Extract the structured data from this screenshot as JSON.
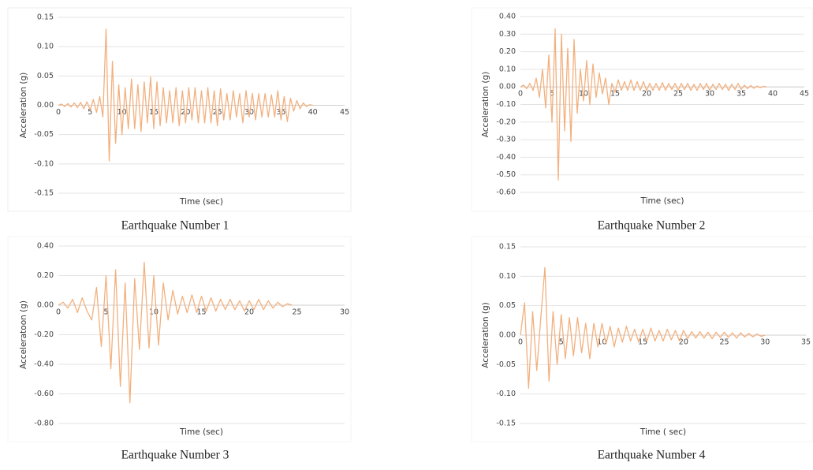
{
  "chart_data": [
    {
      "type": "line",
      "caption": "Earthquake Number 1",
      "xlabel": "Time (sec)",
      "ylabel": "Acceleration (g)",
      "color": "#f2b07e",
      "grid": true,
      "xlim": [
        0,
        45
      ],
      "ylim": [
        -0.15,
        0.15
      ],
      "xticks": [
        0,
        5,
        10,
        15,
        20,
        25,
        30,
        35,
        40,
        45
      ],
      "yticks": [
        -0.15,
        {
          "value": -0.1,
          "label": "-0.10"
        },
        -0.05,
        {
          "value": 0,
          "label": "0.00"
        },
        0.05,
        {
          "value": 0.1,
          "label": "0.10"
        },
        0.15
      ],
      "x": [
        0,
        0.5,
        1,
        1.5,
        2,
        2.5,
        3,
        3.5,
        4,
        4.5,
        5,
        5.5,
        6,
        6.5,
        7,
        7.5,
        8,
        8.5,
        9,
        9.5,
        10,
        10.5,
        11,
        11.5,
        12,
        12.5,
        13,
        13.5,
        14,
        14.5,
        15,
        15.5,
        16,
        16.5,
        17,
        17.5,
        18,
        18.5,
        19,
        19.5,
        20,
        20.5,
        21,
        21.5,
        22,
        22.5,
        23,
        23.5,
        24,
        24.5,
        25,
        25.5,
        26,
        26.5,
        27,
        27.5,
        28,
        28.5,
        29,
        29.5,
        30,
        30.5,
        31,
        31.5,
        32,
        32.5,
        33,
        33.5,
        34,
        34.5,
        35,
        35.5,
        36,
        36.5,
        37,
        37.5,
        38,
        38.5,
        39,
        39.5,
        40
      ],
      "values": [
        0,
        0.002,
        -0.002,
        0.003,
        -0.003,
        0.004,
        -0.004,
        0.005,
        -0.006,
        0.006,
        -0.008,
        0.01,
        -0.012,
        0.015,
        -0.02,
        0.13,
        -0.095,
        0.075,
        -0.065,
        0.035,
        -0.05,
        0.03,
        -0.04,
        0.045,
        -0.04,
        0.035,
        -0.045,
        0.04,
        -0.03,
        0.048,
        -0.04,
        0.04,
        -0.035,
        0.03,
        -0.03,
        0.025,
        -0.03,
        0.03,
        -0.035,
        0.025,
        -0.03,
        0.03,
        -0.025,
        0.03,
        -0.03,
        0.025,
        -0.03,
        0.03,
        -0.03,
        0.025,
        -0.035,
        0.028,
        -0.025,
        0.02,
        -0.025,
        0.025,
        -0.02,
        0.02,
        -0.03,
        0.025,
        -0.02,
        0.02,
        -0.025,
        0.02,
        -0.02,
        0.02,
        -0.02,
        0.018,
        -0.02,
        0.025,
        -0.025,
        0.015,
        -0.028,
        0.012,
        -0.01,
        0.008,
        -0.006,
        0.004,
        -0.002,
        0.001,
        0
      ]
    },
    {
      "type": "line",
      "caption": "Earthquake Number 2",
      "xlabel": "Time (sec)",
      "ylabel": "Acceleration (g)",
      "color": "#f2b07e",
      "grid": true,
      "xlim": [
        0,
        45
      ],
      "ylim": [
        -0.6,
        0.4
      ],
      "xticks": [
        0,
        5,
        10,
        15,
        20,
        25,
        30,
        35,
        40,
        45
      ],
      "yticks": [
        {
          "value": -0.6,
          "label": "-0.60"
        },
        {
          "value": -0.5,
          "label": "-0.50"
        },
        {
          "value": -0.4,
          "label": "-0.40"
        },
        {
          "value": -0.3,
          "label": "-0.30"
        },
        {
          "value": -0.2,
          "label": "-0.20"
        },
        {
          "value": -0.1,
          "label": "-0.10"
        },
        {
          "value": 0,
          "label": "0.00"
        },
        {
          "value": 0.1,
          "label": "0.10"
        },
        {
          "value": 0.2,
          "label": "0.20"
        },
        {
          "value": 0.3,
          "label": "0.30"
        },
        {
          "value": 0.4,
          "label": "0.40"
        }
      ],
      "x": [
        0,
        0.5,
        1,
        1.5,
        2,
        2.5,
        3,
        3.5,
        4,
        4.5,
        5,
        5.5,
        6,
        6.5,
        7,
        7.5,
        8,
        8.5,
        9,
        9.5,
        10,
        10.5,
        11,
        11.5,
        12,
        12.5,
        13,
        13.5,
        14,
        14.5,
        15,
        15.5,
        16,
        16.5,
        17,
        17.5,
        18,
        18.5,
        19,
        19.5,
        20,
        20.5,
        21,
        21.5,
        22,
        22.5,
        23,
        23.5,
        24,
        24.5,
        25,
        25.5,
        26,
        26.5,
        27,
        27.5,
        28,
        28.5,
        29,
        29.5,
        30,
        30.5,
        31,
        31.5,
        32,
        32.5,
        33,
        33.5,
        34,
        34.5,
        35,
        35.5,
        36,
        36.5,
        37,
        37.5,
        38,
        38.5,
        39
      ],
      "values": [
        0,
        0.01,
        -0.01,
        0.02,
        -0.02,
        0.05,
        -0.06,
        0.1,
        -0.12,
        0.18,
        -0.2,
        0.33,
        -0.53,
        0.3,
        -0.25,
        0.22,
        -0.31,
        0.27,
        -0.15,
        0.1,
        -0.08,
        0.15,
        -0.1,
        0.13,
        -0.06,
        0.08,
        -0.04,
        0.05,
        -0.1,
        0.02,
        -0.03,
        0.04,
        -0.02,
        0.03,
        -0.02,
        0.04,
        -0.02,
        0.03,
        -0.02,
        0.03,
        -0.02,
        0.02,
        -0.02,
        0.02,
        -0.02,
        0.025,
        -0.02,
        0.02,
        -0.015,
        0.02,
        -0.02,
        0.02,
        -0.015,
        0.02,
        -0.02,
        0.015,
        -0.02,
        0.02,
        -0.015,
        0.02,
        -0.02,
        0.015,
        -0.015,
        0.02,
        -0.015,
        0.015,
        -0.02,
        0.015,
        -0.015,
        0.02,
        -0.015,
        0.01,
        -0.01,
        0.008,
        -0.008,
        0.005,
        -0.005,
        0.003,
        0
      ]
    },
    {
      "type": "line",
      "caption": "Earthquake Number 3",
      "xlabel": "Time (sec)",
      "ylabel": "Acceleratoon (g)",
      "color": "#f2b07e",
      "grid": true,
      "xlim": [
        0,
        30
      ],
      "ylim": [
        -0.8,
        0.4
      ],
      "xticks": [
        0,
        5,
        10,
        15,
        20,
        25,
        30
      ],
      "yticks": [
        {
          "value": -0.8,
          "label": "-0.80"
        },
        {
          "value": -0.6,
          "label": "-0.60"
        },
        {
          "value": -0.4,
          "label": "-0.40"
        },
        {
          "value": -0.2,
          "label": "-0.20"
        },
        {
          "value": 0,
          "label": "0.00"
        },
        {
          "value": 0.2,
          "label": "0.20"
        },
        {
          "value": 0.4,
          "label": "0.40"
        }
      ],
      "x": [
        0,
        0.5,
        1,
        1.5,
        2,
        2.5,
        3,
        3.5,
        4,
        4.5,
        5,
        5.5,
        6,
        6.5,
        7,
        7.5,
        8,
        8.5,
        9,
        9.5,
        10,
        10.5,
        11,
        11.5,
        12,
        12.5,
        13,
        13.5,
        14,
        14.5,
        15,
        15.5,
        16,
        16.5,
        17,
        17.5,
        18,
        18.5,
        19,
        19.5,
        20,
        20.5,
        21,
        21.5,
        22,
        22.5,
        23,
        23.5,
        24,
        24.5
      ],
      "values": [
        0,
        0.02,
        -0.02,
        0.04,
        -0.05,
        0.05,
        -0.04,
        -0.1,
        0.12,
        -0.28,
        0.2,
        -0.43,
        0.24,
        -0.55,
        0.15,
        -0.66,
        0.18,
        -0.3,
        0.29,
        -0.29,
        0.2,
        -0.27,
        0.15,
        -0.1,
        0.1,
        -0.06,
        0.06,
        -0.05,
        0.07,
        -0.05,
        0.06,
        -0.04,
        0.05,
        -0.04,
        0.04,
        -0.03,
        0.04,
        -0.03,
        0.03,
        -0.04,
        0.03,
        -0.03,
        0.04,
        -0.03,
        0.03,
        -0.02,
        0.02,
        -0.01,
        0.01,
        0
      ]
    },
    {
      "type": "line",
      "caption": "Earthquake Number 4",
      "xlabel": "Time ( sec)",
      "ylabel": "Acceleration (g)",
      "color": "#f2b07e",
      "grid": true,
      "xlim": [
        0,
        35
      ],
      "ylim": [
        -0.15,
        0.15
      ],
      "xticks": [
        0,
        5,
        10,
        15,
        20,
        25,
        30,
        35
      ],
      "yticks": [
        -0.15,
        {
          "value": -0.1,
          "label": "-0.10"
        },
        -0.05,
        {
          "value": 0,
          "label": "0.00"
        },
        0.05,
        {
          "value": 0.1,
          "label": "0.10"
        },
        0.15
      ],
      "x": [
        0,
        0.5,
        1,
        1.5,
        2,
        2.5,
        3,
        3.5,
        4,
        4.5,
        5,
        5.5,
        6,
        6.5,
        7,
        7.5,
        8,
        8.5,
        9,
        9.5,
        10,
        10.5,
        11,
        11.5,
        12,
        12.5,
        13,
        13.5,
        14,
        14.5,
        15,
        15.5,
        16,
        16.5,
        17,
        17.5,
        18,
        18.5,
        19,
        19.5,
        20,
        20.5,
        21,
        21.5,
        22,
        22.5,
        23,
        23.5,
        24,
        24.5,
        25,
        25.5,
        26,
        26.5,
        27,
        27.5,
        28,
        28.5,
        29,
        29.5,
        30
      ],
      "values": [
        0,
        0.055,
        -0.09,
        0.04,
        -0.06,
        0.03,
        0.115,
        -0.078,
        0.04,
        -0.05,
        0.035,
        -0.04,
        0.03,
        -0.035,
        0.03,
        -0.03,
        0.02,
        -0.04,
        0.02,
        -0.02,
        0.02,
        -0.015,
        0.015,
        -0.02,
        0.012,
        -0.012,
        0.015,
        -0.01,
        0.01,
        -0.012,
        0.01,
        -0.01,
        0.012,
        -0.01,
        0.008,
        -0.01,
        0.01,
        -0.008,
        0.008,
        -0.01,
        0.008,
        -0.006,
        0.006,
        -0.005,
        0.006,
        -0.005,
        0.005,
        -0.006,
        0.005,
        -0.004,
        0.005,
        -0.004,
        0.004,
        -0.005,
        0.004,
        -0.003,
        0.003,
        -0.003,
        0.002,
        -0.002,
        0
      ]
    }
  ]
}
